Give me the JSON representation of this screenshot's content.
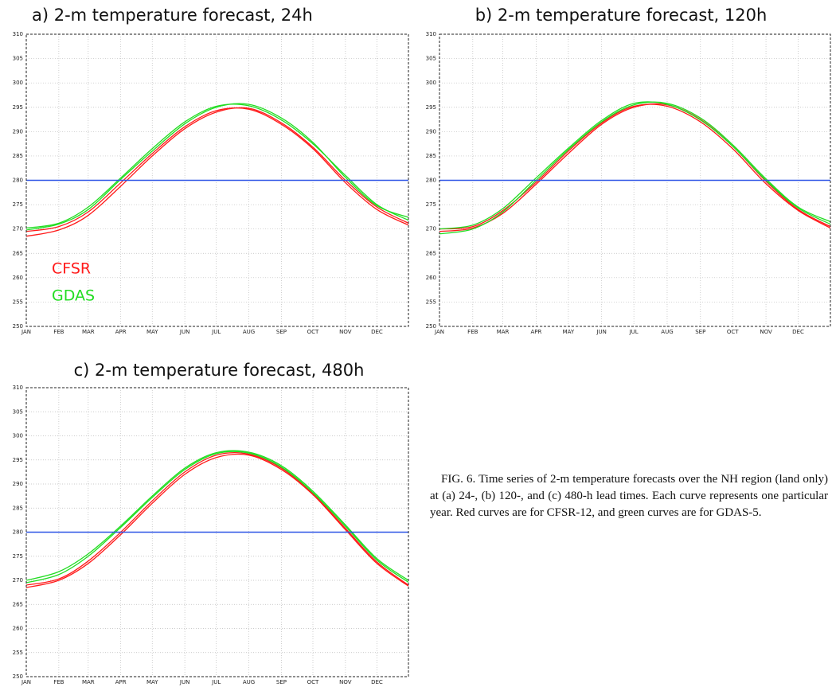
{
  "chart_data": [
    {
      "type": "line",
      "title": "a) 2-m temperature forecast, 24h",
      "x": [
        1,
        32,
        60,
        91,
        121,
        152,
        182,
        213,
        244,
        274,
        305,
        335,
        365
      ],
      "xlim": [
        1,
        365
      ],
      "xticks": [
        {
          "value": 1,
          "label": "JAN"
        },
        {
          "value": 32,
          "label": "FEB"
        },
        {
          "value": 60,
          "label": "MAR"
        },
        {
          "value": 91,
          "label": "APR"
        },
        {
          "value": 121,
          "label": "MAY"
        },
        {
          "value": 152,
          "label": "JUN"
        },
        {
          "value": 182,
          "label": "JUL"
        },
        {
          "value": 213,
          "label": "AUG"
        },
        {
          "value": 244,
          "label": "SEP"
        },
        {
          "value": 274,
          "label": "OCT"
        },
        {
          "value": 305,
          "label": "NOV"
        },
        {
          "value": 335,
          "label": "DEC"
        }
      ],
      "ylim": [
        250,
        310
      ],
      "yticks": [
        250,
        255,
        260,
        265,
        270,
        275,
        280,
        285,
        290,
        295,
        300,
        305,
        310
      ],
      "grid": true,
      "hline": 280,
      "hline_color": "#2f55e6",
      "legend": [
        {
          "label": "CFSR",
          "color": "#ff1a1a"
        },
        {
          "label": "GDAS",
          "color": "#22dd22"
        }
      ],
      "series": [
        {
          "color": "#ff1a1a",
          "values": [
            269.5,
            270.5,
            273.5,
            279.5,
            285.5,
            291,
            294.3,
            294.6,
            291.5,
            286.5,
            279.5,
            274,
            270.8
          ]
        },
        {
          "color": "#ff1a1a",
          "values": [
            268.5,
            269.8,
            272.8,
            278.8,
            285,
            290.6,
            294,
            294.8,
            291.8,
            286.8,
            280,
            274.5,
            271.2
          ]
        },
        {
          "color": "#22dd22",
          "values": [
            270.2,
            271.2,
            274.5,
            280.5,
            286.5,
            292,
            295.2,
            295.3,
            292.4,
            287.5,
            281,
            275,
            271.8
          ]
        },
        {
          "color": "#22dd22",
          "values": [
            269.8,
            271,
            274,
            280.2,
            286,
            291.6,
            295,
            295.6,
            292.8,
            287.8,
            280.6,
            274.8,
            272.4
          ]
        }
      ]
    },
    {
      "type": "line",
      "title": "b) 2-m temperature forecast, 120h",
      "x": [
        1,
        32,
        60,
        91,
        121,
        152,
        182,
        213,
        244,
        274,
        305,
        335,
        365
      ],
      "xlim": [
        1,
        365
      ],
      "xticks": [
        {
          "value": 1,
          "label": "JAN"
        },
        {
          "value": 32,
          "label": "FEB"
        },
        {
          "value": 60,
          "label": "MAR"
        },
        {
          "value": 91,
          "label": "APR"
        },
        {
          "value": 121,
          "label": "MAY"
        },
        {
          "value": 152,
          "label": "JUN"
        },
        {
          "value": 182,
          "label": "JUL"
        },
        {
          "value": 213,
          "label": "AUG"
        },
        {
          "value": 244,
          "label": "SEP"
        },
        {
          "value": 274,
          "label": "OCT"
        },
        {
          "value": 305,
          "label": "NOV"
        },
        {
          "value": 335,
          "label": "DEC"
        }
      ],
      "ylim": [
        250,
        310
      ],
      "yticks": [
        250,
        255,
        260,
        265,
        270,
        275,
        280,
        285,
        290,
        295,
        300,
        305,
        310
      ],
      "grid": true,
      "hline": 280,
      "hline_color": "#2f55e6",
      "series": [
        {
          "color": "#ff1a1a",
          "values": [
            270,
            270.5,
            273.8,
            279.6,
            286,
            291.8,
            295.2,
            295.2,
            292,
            286.5,
            279.3,
            273.8,
            270.2
          ]
        },
        {
          "color": "#ff1a1a",
          "values": [
            269.5,
            270.2,
            273.2,
            279.2,
            285.5,
            291.5,
            295,
            295.5,
            292.5,
            287,
            279.8,
            274,
            270.5
          ]
        },
        {
          "color": "#22dd22",
          "values": [
            269,
            270,
            273.5,
            280,
            286.3,
            292,
            295.5,
            295.8,
            292.8,
            287.3,
            280.3,
            274.5,
            271.5
          ]
        },
        {
          "color": "#22dd22",
          "values": [
            270,
            270.8,
            274.2,
            280.5,
            286.6,
            292.3,
            295.8,
            295.6,
            292.4,
            287,
            280,
            274.3,
            271
          ]
        }
      ]
    },
    {
      "type": "line",
      "title": "c) 2-m temperature forecast, 480h",
      "x": [
        1,
        32,
        60,
        91,
        121,
        152,
        182,
        213,
        244,
        274,
        305,
        335,
        365
      ],
      "xlim": [
        1,
        365
      ],
      "xticks": [
        {
          "value": 1,
          "label": "JAN"
        },
        {
          "value": 32,
          "label": "FEB"
        },
        {
          "value": 60,
          "label": "MAR"
        },
        {
          "value": 91,
          "label": "APR"
        },
        {
          "value": 121,
          "label": "MAY"
        },
        {
          "value": 152,
          "label": "JUN"
        },
        {
          "value": 182,
          "label": "JUL"
        },
        {
          "value": 213,
          "label": "AUG"
        },
        {
          "value": 244,
          "label": "SEP"
        },
        {
          "value": 274,
          "label": "OCT"
        },
        {
          "value": 305,
          "label": "NOV"
        },
        {
          "value": 335,
          "label": "DEC"
        }
      ],
      "ylim": [
        250,
        310
      ],
      "yticks": [
        250,
        255,
        260,
        265,
        270,
        275,
        280,
        285,
        290,
        295,
        300,
        305,
        310
      ],
      "grid": true,
      "hline": 280,
      "hline_color": "#2f55e6",
      "series": [
        {
          "color": "#ff1a1a",
          "values": [
            268.5,
            270,
            273.5,
            279.5,
            286,
            292,
            295.5,
            296,
            293,
            287.8,
            280.5,
            273.5,
            268.8
          ]
        },
        {
          "color": "#ff1a1a",
          "values": [
            269,
            270.3,
            274,
            280,
            286.5,
            292.5,
            296,
            296.2,
            293.3,
            288,
            280.8,
            273.8,
            269
          ]
        },
        {
          "color": "#22dd22",
          "values": [
            270,
            271.8,
            275.5,
            281.3,
            287.5,
            293.3,
            296.5,
            296.6,
            293.8,
            288.5,
            281.5,
            274.5,
            270
          ]
        },
        {
          "color": "#22dd22",
          "values": [
            269.5,
            271.2,
            275,
            281,
            287.2,
            293,
            296.3,
            296.4,
            293.5,
            288.2,
            281.2,
            274.2,
            269.6
          ]
        }
      ]
    }
  ],
  "caption": {
    "label": "FIG. 6.",
    "text": "Time series of 2-m temperature forecasts over the NH region (land only) at (a) 24-, (b) 120-, and (c) 480-h lead times. Each curve represents one particular year. Red curves are for CFSR-12, and green curves are for GDAS-5."
  }
}
